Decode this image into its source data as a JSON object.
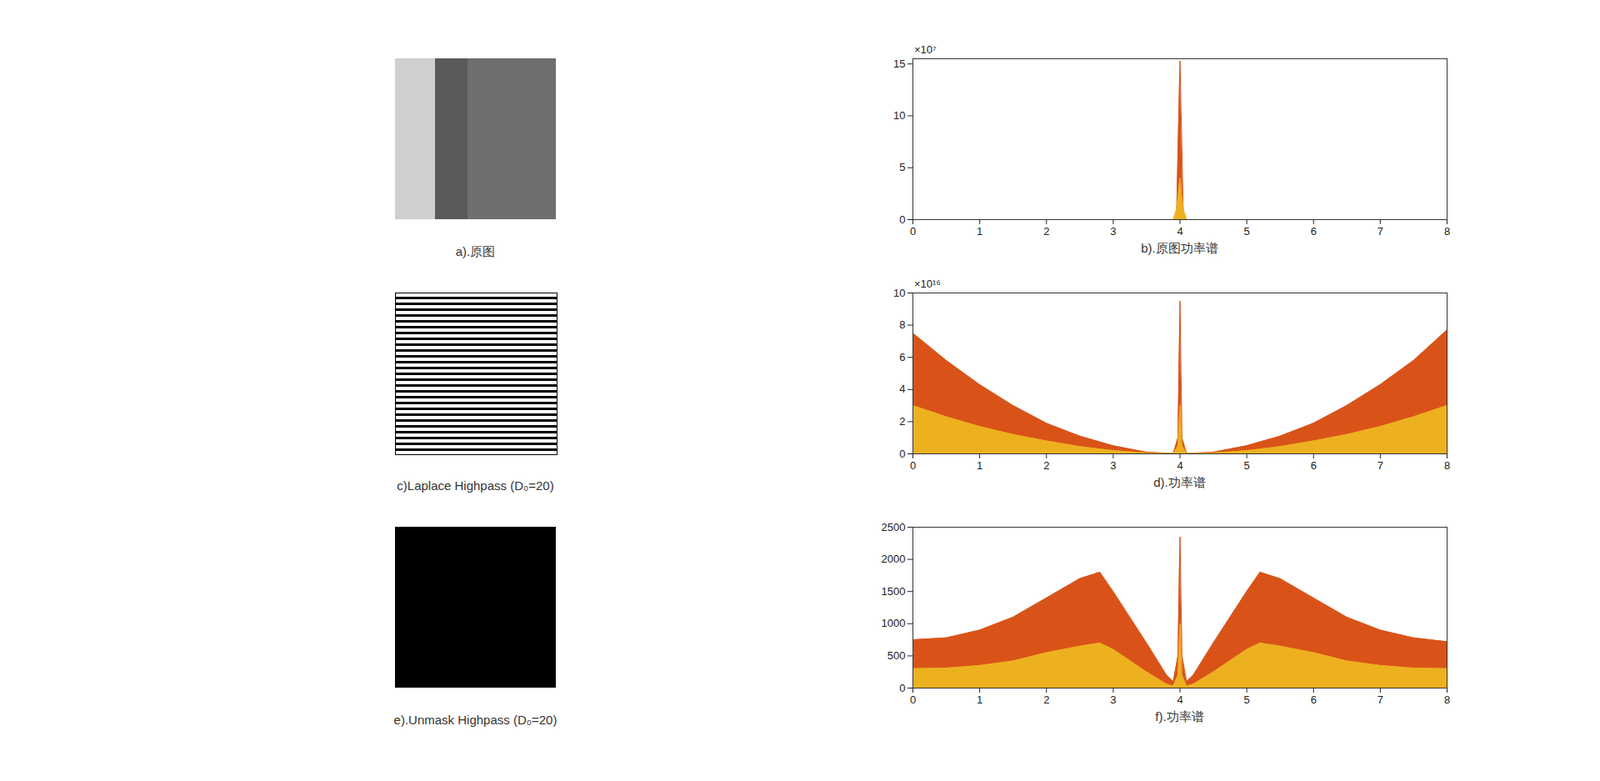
{
  "images": [
    {
      "caption": "a).原图"
    },
    {
      "caption": "c)Laplace Highpass (D₀=20)"
    },
    {
      "caption": "e).Unmask Highpass (D₀=20)"
    }
  ],
  "chart_data": [
    {
      "type": "area",
      "xlabel": "b).原图功率谱",
      "y_multiplier": "×10⁷",
      "xlim": [
        0,
        8
      ],
      "xticks": [
        0,
        1,
        2,
        3,
        4,
        5,
        6,
        7,
        8
      ],
      "ylim": [
        0,
        15.5
      ],
      "yticks": [
        0,
        5,
        10,
        15
      ],
      "x": [
        0,
        3.9,
        3.95,
        4,
        4.05,
        4.1,
        8
      ],
      "series": [
        {
          "color": "#D95319",
          "values": [
            0,
            0,
            0.5,
            15.3,
            0.5,
            0,
            0
          ]
        },
        {
          "color": "#EDB120",
          "values": [
            0,
            0,
            1,
            4,
            1,
            0,
            0
          ]
        }
      ]
    },
    {
      "type": "area",
      "xlabel": "d).功率谱",
      "y_multiplier": "×10¹⁶",
      "xlim": [
        0,
        8
      ],
      "xticks": [
        0,
        1,
        2,
        3,
        4,
        5,
        6,
        7,
        8
      ],
      "ylim": [
        0,
        10
      ],
      "yticks": [
        0,
        2,
        4,
        6,
        8,
        10
      ],
      "x": [
        0,
        0.5,
        1,
        1.5,
        2,
        2.5,
        3,
        3.5,
        3.9,
        3.97,
        4,
        4.03,
        4.1,
        4.5,
        5,
        5.5,
        6,
        6.5,
        7,
        7.5,
        8
      ],
      "series": [
        {
          "color": "#D95319",
          "values": [
            7.5,
            5.8,
            4.3,
            3,
            1.9,
            1.1,
            0.5,
            0.1,
            0.02,
            1,
            9.5,
            1,
            0.02,
            0.1,
            0.5,
            1.1,
            1.9,
            3,
            4.3,
            5.8,
            7.7
          ]
        },
        {
          "color": "#EDB120",
          "values": [
            3,
            2.3,
            1.7,
            1.2,
            0.8,
            0.45,
            0.2,
            0.05,
            0.01,
            0.5,
            3,
            0.5,
            0.01,
            0.05,
            0.2,
            0.45,
            0.8,
            1.2,
            1.7,
            2.3,
            3
          ]
        }
      ]
    },
    {
      "type": "area",
      "xlabel": "f).功率谱",
      "xlim": [
        0,
        8
      ],
      "xticks": [
        0,
        1,
        2,
        3,
        4,
        5,
        6,
        7,
        8
      ],
      "ylim": [
        0,
        2500
      ],
      "yticks": [
        0,
        500,
        1000,
        1500,
        2000,
        2500
      ],
      "x": [
        0,
        0.5,
        1,
        1.5,
        2,
        2.5,
        2.8,
        3,
        3.5,
        3.8,
        3.9,
        3.97,
        4,
        4.03,
        4.1,
        4.2,
        4.5,
        5,
        5.2,
        5.5,
        6,
        6.5,
        7,
        7.5,
        8
      ],
      "series": [
        {
          "color": "#D95319",
          "values": [
            750,
            780,
            900,
            1100,
            1400,
            1700,
            1800,
            1500,
            700,
            200,
            100,
            500,
            2350,
            500,
            100,
            200,
            700,
            1500,
            1800,
            1700,
            1400,
            1100,
            900,
            780,
            720
          ]
        },
        {
          "color": "#EDB120",
          "values": [
            300,
            310,
            350,
            420,
            550,
            650,
            700,
            600,
            250,
            60,
            30,
            200,
            1000,
            200,
            30,
            60,
            250,
            600,
            700,
            650,
            550,
            420,
            350,
            310,
            300
          ]
        }
      ]
    }
  ]
}
